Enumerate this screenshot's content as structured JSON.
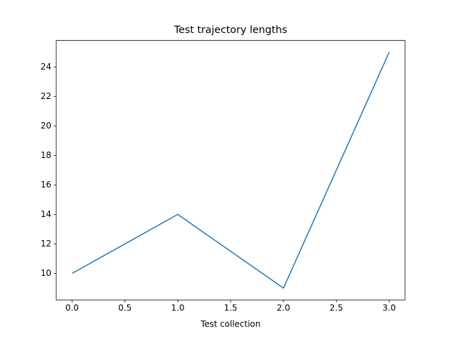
{
  "chart_data": {
    "type": "line",
    "title": "Test trajectory lengths",
    "xlabel": "Test collection",
    "x": [
      0,
      1,
      2,
      3
    ],
    "series": [
      {
        "color": "#1f77b4",
        "values": [
          10,
          14,
          9,
          25
        ]
      }
    ],
    "xlim": [
      -0.15,
      3.15
    ],
    "xticks": [
      {
        "value": 0,
        "label": "0.0"
      },
      {
        "value": 0.5,
        "label": "0.5"
      },
      {
        "value": 1,
        "label": "1.0"
      },
      {
        "value": 1.5,
        "label": "1.5"
      },
      {
        "value": 2,
        "label": "2.0"
      },
      {
        "value": 2.5,
        "label": "2.5"
      },
      {
        "value": 3,
        "label": "3.0"
      }
    ],
    "ylim": [
      8.2,
      25.8
    ],
    "yticks": [
      10,
      12,
      14,
      16,
      18,
      20,
      22,
      24
    ]
  }
}
